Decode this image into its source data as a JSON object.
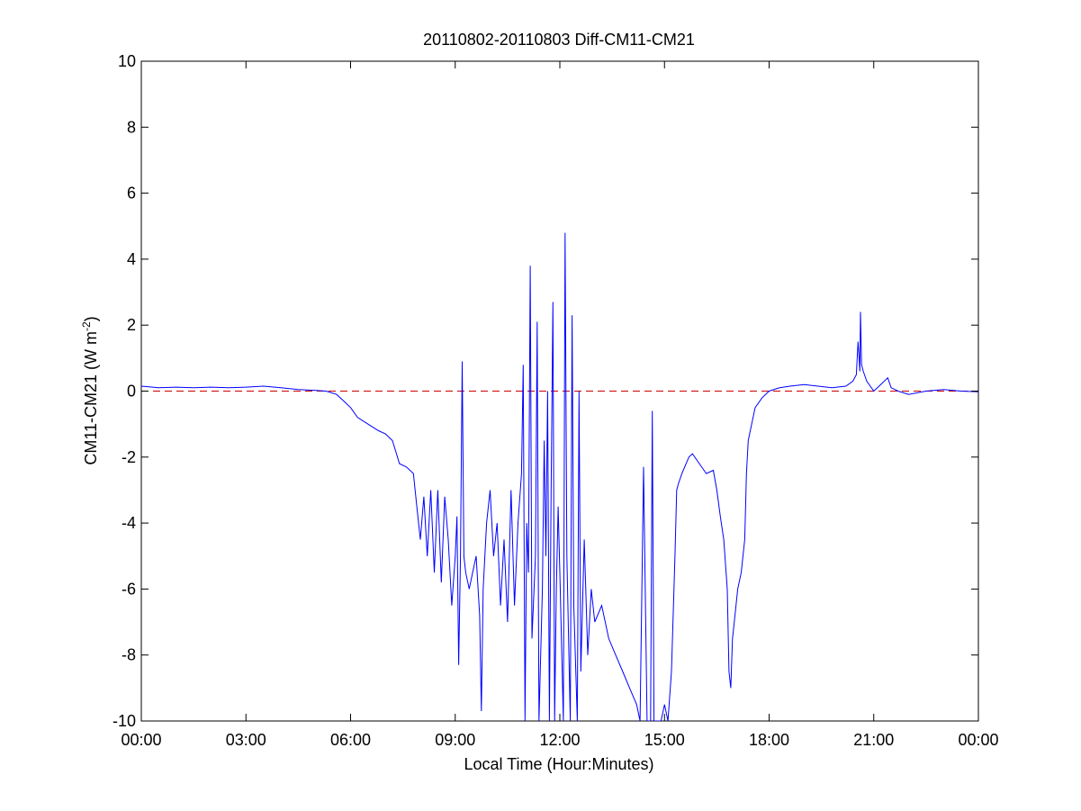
{
  "chart_data": {
    "type": "line",
    "title": "20110802-20110803 Diff-CM11-CM21",
    "xlabel": "Local Time (Hour:Minutes)",
    "ylabel": {
      "main": "CM11-CM21 (W m",
      "superscript": "-2",
      "close": ")"
    },
    "xlim_hours": [
      0,
      24
    ],
    "ylim": [
      -10,
      10
    ],
    "grid": false,
    "x_ticks": [
      {
        "hour": 0,
        "label": "00:00"
      },
      {
        "hour": 3,
        "label": "03:00"
      },
      {
        "hour": 6,
        "label": "06:00"
      },
      {
        "hour": 9,
        "label": "09:00"
      },
      {
        "hour": 12,
        "label": "12:00"
      },
      {
        "hour": 15,
        "label": "15:00"
      },
      {
        "hour": 18,
        "label": "18:00"
      },
      {
        "hour": 21,
        "label": "21:00"
      },
      {
        "hour": 24,
        "label": "00:00"
      }
    ],
    "y_ticks": [
      {
        "value": 10,
        "label": "10"
      },
      {
        "value": 8,
        "label": "8"
      },
      {
        "value": 6,
        "label": "6"
      },
      {
        "value": 4,
        "label": "4"
      },
      {
        "value": 2,
        "label": "2"
      },
      {
        "value": 0,
        "label": "0"
      },
      {
        "value": -2,
        "label": "-2"
      },
      {
        "value": -4,
        "label": "-4"
      },
      {
        "value": -6,
        "label": "-6"
      },
      {
        "value": -8,
        "label": "-8"
      },
      {
        "value": -10,
        "label": "-10"
      }
    ],
    "reference_line": {
      "y": 0,
      "style": "dashed",
      "color": "#cc0000"
    },
    "series": [
      {
        "color": "#0000ff",
        "points": [
          [
            0.0,
            0.15
          ],
          [
            0.5,
            0.1
          ],
          [
            1.0,
            0.12
          ],
          [
            1.5,
            0.1
          ],
          [
            2.0,
            0.12
          ],
          [
            2.5,
            0.1
          ],
          [
            3.0,
            0.12
          ],
          [
            3.5,
            0.15
          ],
          [
            4.0,
            0.1
          ],
          [
            4.5,
            0.05
          ],
          [
            5.0,
            0.02
          ],
          [
            5.3,
            0.0
          ],
          [
            5.6,
            -0.1
          ],
          [
            5.8,
            -0.3
          ],
          [
            6.0,
            -0.5
          ],
          [
            6.2,
            -0.8
          ],
          [
            6.5,
            -1.0
          ],
          [
            6.8,
            -1.2
          ],
          [
            7.0,
            -1.3
          ],
          [
            7.2,
            -1.5
          ],
          [
            7.4,
            -2.2
          ],
          [
            7.6,
            -2.3
          ],
          [
            7.8,
            -2.5
          ],
          [
            7.9,
            -3.5
          ],
          [
            8.0,
            -4.5
          ],
          [
            8.1,
            -3.2
          ],
          [
            8.2,
            -5.0
          ],
          [
            8.3,
            -3.0
          ],
          [
            8.4,
            -5.5
          ],
          [
            8.5,
            -3.0
          ],
          [
            8.6,
            -5.8
          ],
          [
            8.7,
            -3.2
          ],
          [
            8.8,
            -4.5
          ],
          [
            8.9,
            -6.5
          ],
          [
            9.0,
            -5.0
          ],
          [
            9.05,
            -3.8
          ],
          [
            9.1,
            -8.3
          ],
          [
            9.15,
            -5.0
          ],
          [
            9.2,
            0.9
          ],
          [
            9.25,
            -5.0
          ],
          [
            9.3,
            -5.5
          ],
          [
            9.4,
            -6.0
          ],
          [
            9.5,
            -5.5
          ],
          [
            9.6,
            -5.0
          ],
          [
            9.7,
            -6.8
          ],
          [
            9.75,
            -9.7
          ],
          [
            9.8,
            -6.0
          ],
          [
            9.9,
            -4.0
          ],
          [
            10.0,
            -3.0
          ],
          [
            10.1,
            -5.0
          ],
          [
            10.2,
            -4.0
          ],
          [
            10.3,
            -6.5
          ],
          [
            10.4,
            -4.5
          ],
          [
            10.5,
            -7.0
          ],
          [
            10.6,
            -3.0
          ],
          [
            10.7,
            -6.5
          ],
          [
            10.8,
            -4.0
          ],
          [
            10.9,
            -2.5
          ],
          [
            10.95,
            0.8
          ],
          [
            11.0,
            -10.0
          ],
          [
            11.05,
            -4.0
          ],
          [
            11.1,
            -5.5
          ],
          [
            11.15,
            3.8
          ],
          [
            11.2,
            -7.5
          ],
          [
            11.3,
            -5.0
          ],
          [
            11.35,
            2.1
          ],
          [
            11.4,
            -10.0
          ],
          [
            11.5,
            -6.0
          ],
          [
            11.55,
            -1.5
          ],
          [
            11.6,
            -5.0
          ],
          [
            11.65,
            0.0
          ],
          [
            11.7,
            -10.0
          ],
          [
            11.75,
            -3.0
          ],
          [
            11.8,
            2.7
          ],
          [
            11.85,
            -10.0
          ],
          [
            11.9,
            -6.0
          ],
          [
            11.95,
            -3.5
          ],
          [
            12.0,
            -5.5
          ],
          [
            12.1,
            -10.0
          ],
          [
            12.15,
            4.8
          ],
          [
            12.2,
            -5.0
          ],
          [
            12.3,
            -10.0
          ],
          [
            12.35,
            2.3
          ],
          [
            12.4,
            -6.5
          ],
          [
            12.5,
            -10.0
          ],
          [
            12.55,
            0.0
          ],
          [
            12.6,
            -8.5
          ],
          [
            12.7,
            -4.5
          ],
          [
            12.8,
            -8.0
          ],
          [
            12.9,
            -6.0
          ],
          [
            13.0,
            -7.0
          ],
          [
            13.2,
            -6.5
          ],
          [
            13.4,
            -7.5
          ],
          [
            13.6,
            -8.0
          ],
          [
            13.8,
            -8.5
          ],
          [
            14.0,
            -9.0
          ],
          [
            14.2,
            -9.5
          ],
          [
            14.3,
            -10.0
          ],
          [
            14.4,
            -2.3
          ],
          [
            14.5,
            -10.0
          ],
          [
            14.6,
            -10.0
          ],
          [
            14.65,
            -0.6
          ],
          [
            14.7,
            -10.0
          ],
          [
            14.8,
            -10.0
          ],
          [
            14.9,
            -10.0
          ],
          [
            15.0,
            -9.5
          ],
          [
            15.1,
            -10.0
          ],
          [
            15.2,
            -8.5
          ],
          [
            15.3,
            -5.0
          ],
          [
            15.35,
            -3.0
          ],
          [
            15.4,
            -2.8
          ],
          [
            15.5,
            -2.5
          ],
          [
            15.7,
            -2.0
          ],
          [
            15.8,
            -1.9
          ],
          [
            16.0,
            -2.2
          ],
          [
            16.2,
            -2.5
          ],
          [
            16.4,
            -2.4
          ],
          [
            16.5,
            -3.0
          ],
          [
            16.6,
            -3.8
          ],
          [
            16.7,
            -4.5
          ],
          [
            16.8,
            -6.0
          ],
          [
            16.85,
            -8.5
          ],
          [
            16.9,
            -9.0
          ],
          [
            16.95,
            -7.5
          ],
          [
            17.0,
            -7.0
          ],
          [
            17.1,
            -6.0
          ],
          [
            17.2,
            -5.5
          ],
          [
            17.3,
            -4.5
          ],
          [
            17.35,
            -2.5
          ],
          [
            17.4,
            -1.5
          ],
          [
            17.5,
            -1.0
          ],
          [
            17.6,
            -0.5
          ],
          [
            17.8,
            -0.2
          ],
          [
            18.0,
            0.0
          ],
          [
            18.3,
            0.1
          ],
          [
            18.6,
            0.15
          ],
          [
            19.0,
            0.2
          ],
          [
            19.4,
            0.15
          ],
          [
            19.8,
            0.1
          ],
          [
            20.2,
            0.15
          ],
          [
            20.4,
            0.3
          ],
          [
            20.5,
            0.5
          ],
          [
            20.55,
            1.5
          ],
          [
            20.6,
            0.6
          ],
          [
            20.62,
            2.4
          ],
          [
            20.65,
            0.8
          ],
          [
            20.7,
            0.6
          ],
          [
            20.8,
            0.3
          ],
          [
            21.0,
            0.0
          ],
          [
            21.2,
            0.2
          ],
          [
            21.4,
            0.4
          ],
          [
            21.5,
            0.1
          ],
          [
            21.7,
            0.0
          ],
          [
            22.0,
            -0.1
          ],
          [
            22.5,
            0.0
          ],
          [
            23.0,
            0.05
          ],
          [
            23.5,
            0.0
          ],
          [
            24.0,
            -0.02
          ]
        ]
      }
    ]
  }
}
